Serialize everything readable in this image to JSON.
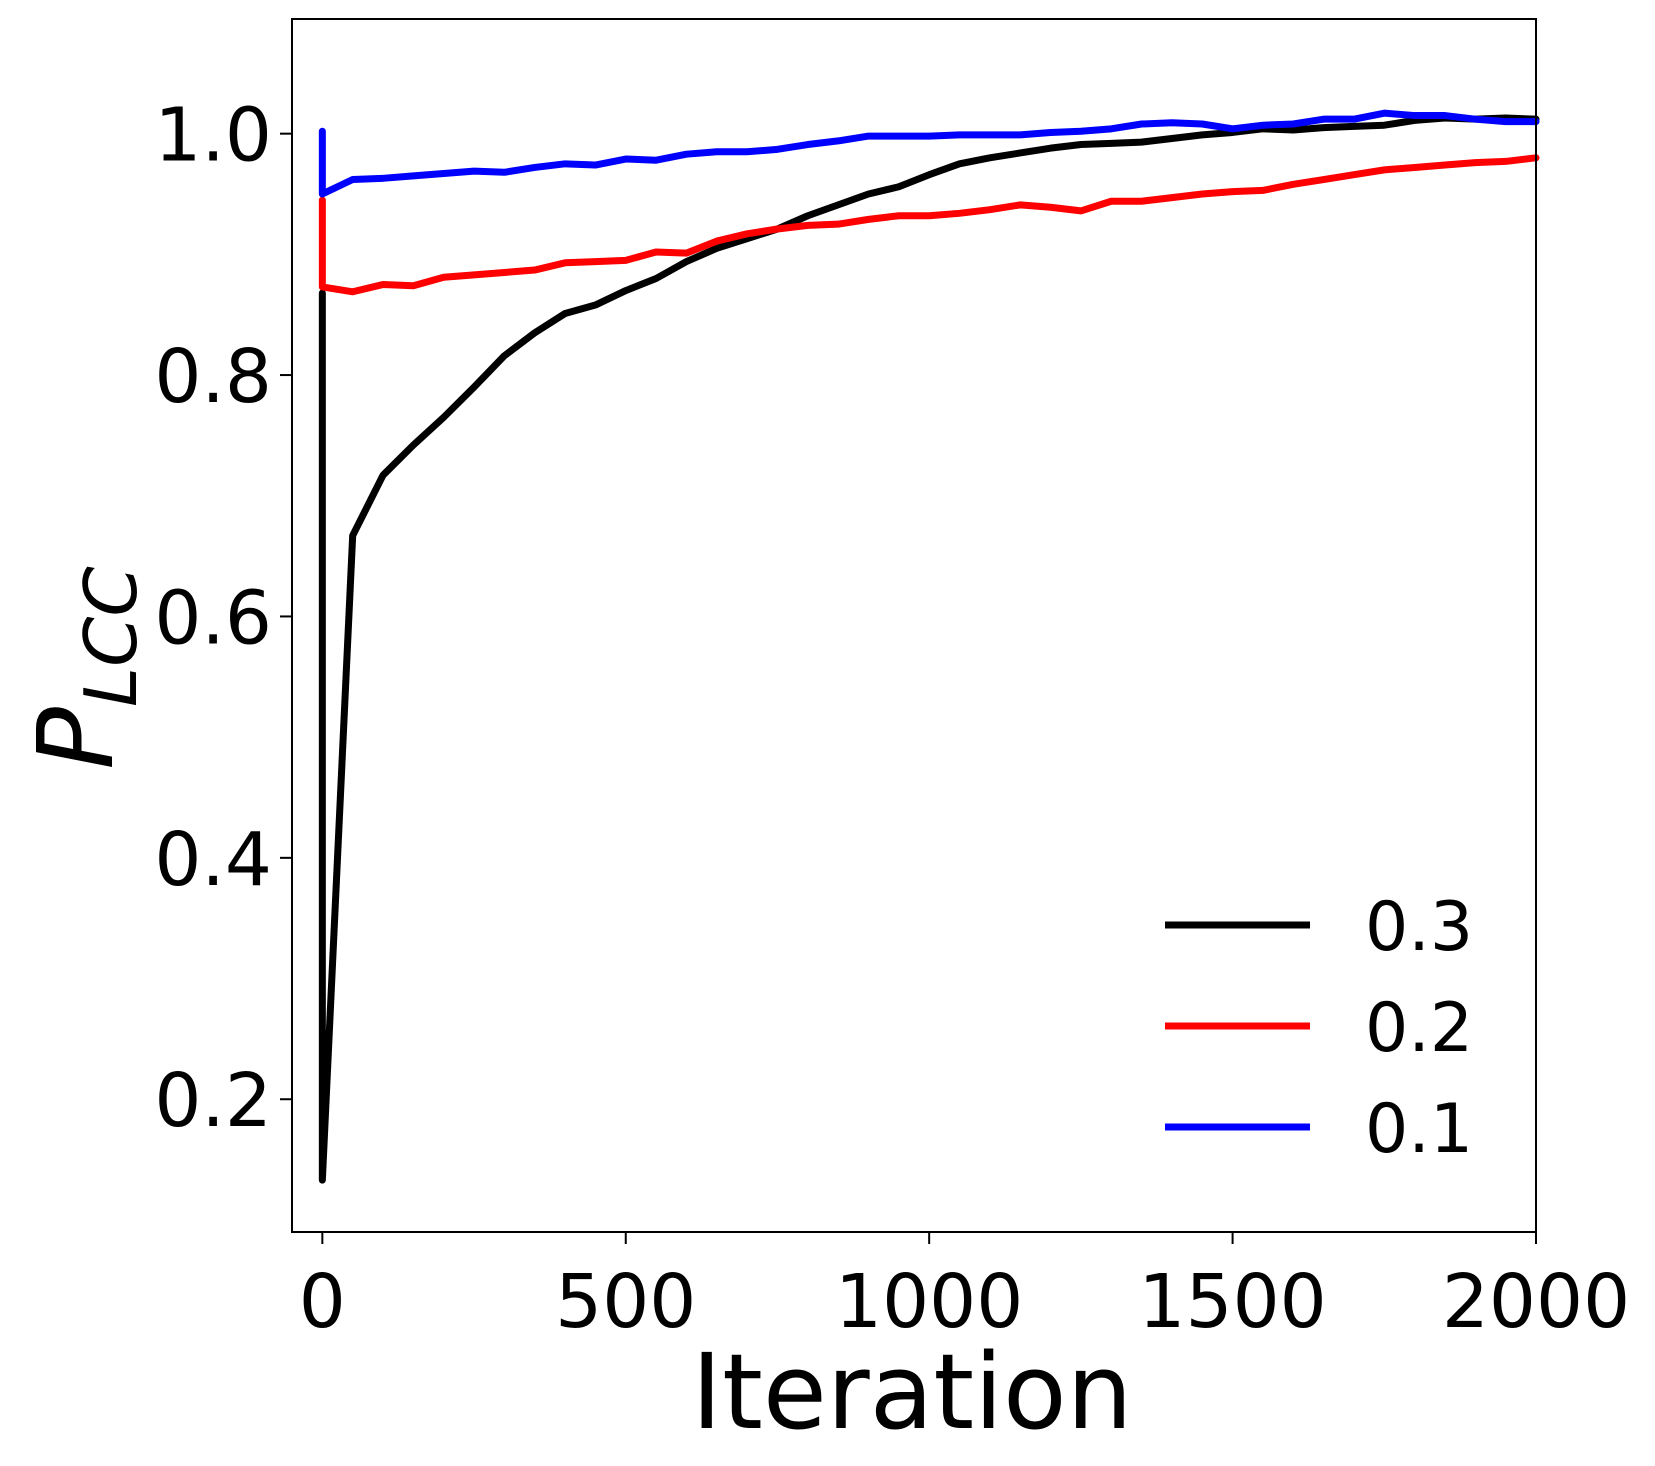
{
  "chart_data": {
    "type": "line",
    "title": "",
    "xlabel": "Iteration",
    "ylabel_main": "P",
    "ylabel_sub": "LCC",
    "xlim": [
      -50,
      2000
    ],
    "ylim": [
      0.09,
      1.095
    ],
    "x_ticks": [
      0,
      500,
      1000,
      1500,
      2000
    ],
    "x_tick_labels": [
      "0",
      "500",
      "1000",
      "1500",
      "2000"
    ],
    "y_ticks": [
      0.2,
      0.4,
      0.6,
      0.8,
      1.0
    ],
    "y_tick_labels": [
      "0.2",
      "0.4",
      "0.6",
      "0.8",
      "1.0"
    ],
    "grid": false,
    "legend_position": "bottom-right",
    "x": [
      0,
      0,
      50,
      100,
      150,
      200,
      250,
      300,
      350,
      400,
      450,
      500,
      550,
      600,
      650,
      700,
      750,
      800,
      850,
      900,
      950,
      1000,
      1050,
      1100,
      1150,
      1200,
      1250,
      1300,
      1350,
      1400,
      1450,
      1500,
      1550,
      1600,
      1650,
      1700,
      1750,
      1800,
      1850,
      1900,
      1950,
      2000
    ],
    "series": [
      {
        "name": "0.3",
        "color": "#000000",
        "values": [
          0.868,
          0.133,
          0.667,
          0.717,
          0.742,
          0.765,
          0.79,
          0.816,
          0.835,
          0.851,
          0.858,
          0.87,
          0.88,
          0.894,
          0.905,
          0.913,
          0.921,
          0.932,
          0.941,
          0.95,
          0.956,
          0.966,
          0.975,
          0.98,
          0.984,
          0.988,
          0.991,
          0.992,
          0.993,
          0.996,
          0.999,
          1.001,
          1.004,
          1.003,
          1.005,
          1.006,
          1.007,
          1.011,
          1.013,
          1.012,
          1.013,
          1.012
        ]
      },
      {
        "name": "0.2",
        "color": "#ff0000",
        "values": [
          0.945,
          0.873,
          0.869,
          0.875,
          0.874,
          0.881,
          0.883,
          0.885,
          0.887,
          0.893,
          0.894,
          0.895,
          0.902,
          0.901,
          0.911,
          0.917,
          0.921,
          0.924,
          0.925,
          0.929,
          0.932,
          0.932,
          0.934,
          0.937,
          0.941,
          0.939,
          0.936,
          0.944,
          0.944,
          0.947,
          0.95,
          0.952,
          0.953,
          0.958,
          0.962,
          0.966,
          0.97,
          0.972,
          0.974,
          0.976,
          0.977,
          0.98
        ]
      },
      {
        "name": "0.1",
        "color": "#0000ff",
        "values": [
          1.002,
          0.95,
          0.962,
          0.963,
          0.965,
          0.967,
          0.969,
          0.968,
          0.972,
          0.975,
          0.974,
          0.979,
          0.978,
          0.983,
          0.985,
          0.985,
          0.987,
          0.991,
          0.994,
          0.998,
          0.998,
          0.998,
          0.999,
          0.999,
          0.999,
          1.001,
          1.002,
          1.004,
          1.008,
          1.009,
          1.008,
          1.004,
          1.007,
          1.008,
          1.012,
          1.012,
          1.017,
          1.015,
          1.015,
          1.012,
          1.01,
          1.01
        ]
      }
    ]
  }
}
